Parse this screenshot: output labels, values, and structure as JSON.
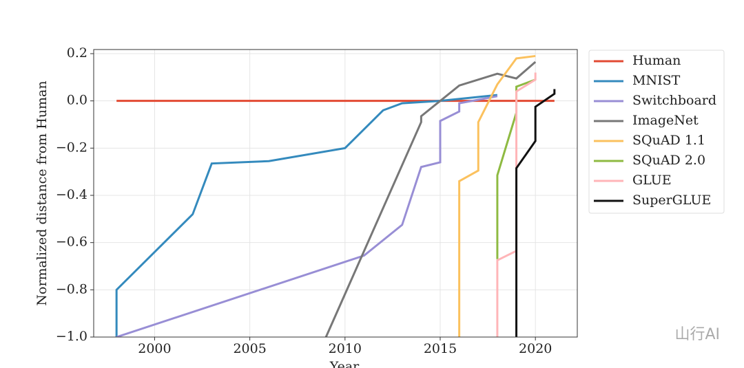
{
  "chart_data": {
    "type": "line",
    "xlabel": "Year",
    "ylabel": "Normalized distance from Human",
    "xlim": [
      1996.8,
      2022.2
    ],
    "ylim": [
      -1.0,
      0.2175
    ],
    "xticks": [
      2000,
      2005,
      2010,
      2015,
      2020
    ],
    "yticks": [
      {
        "value": -1.0,
        "label": "−1.0"
      },
      {
        "value": -0.8,
        "label": "−0.8"
      },
      {
        "value": -0.6,
        "label": "−0.6"
      },
      {
        "value": -0.4,
        "label": "−0.4"
      },
      {
        "value": -0.2,
        "label": "−0.2"
      },
      {
        "value": 0.0,
        "label": "0.0"
      },
      {
        "value": 0.2,
        "label": "0.2"
      }
    ],
    "grid": true,
    "legend": "outside right",
    "watermark": "山行AI",
    "series": [
      {
        "name": "Human",
        "color": "#E24A33",
        "x": [
          1998,
          2021
        ],
        "values": [
          0,
          0
        ]
      },
      {
        "name": "MNIST",
        "color": "#348ABD",
        "x": [
          1998,
          1998,
          2002,
          2003,
          2006,
          2010,
          2012,
          2013,
          2015,
          2018
        ],
        "values": [
          -1.0,
          -0.8,
          -0.48,
          -0.265,
          -0.255,
          -0.2,
          -0.04,
          -0.01,
          0.0,
          0.025
        ]
      },
      {
        "name": "Switchboard",
        "color": "#988ED5",
        "x": [
          1998,
          2011,
          2013,
          2014,
          2015,
          2015,
          2016,
          2016,
          2018
        ],
        "values": [
          -1.0,
          -0.655,
          -0.525,
          -0.28,
          -0.26,
          -0.085,
          -0.045,
          -0.01,
          0.02
        ]
      },
      {
        "name": "ImageNet",
        "color": "#777777",
        "x": [
          2009,
          2014,
          2014,
          2016,
          2018,
          2019,
          2020
        ],
        "values": [
          -1.0,
          -0.09,
          -0.065,
          0.065,
          0.115,
          0.095,
          0.165
        ]
      },
      {
        "name": "SQuAD 1.1",
        "color": "#FBC15E",
        "x": [
          2016,
          2016,
          2017,
          2017,
          2018,
          2019,
          2020
        ],
        "values": [
          -1.0,
          -0.34,
          -0.295,
          -0.09,
          0.07,
          0.18,
          0.19
        ]
      },
      {
        "name": "SQuAD 2.0",
        "color": "#8EBA42",
        "x": [
          2018,
          2018,
          2019,
          2019,
          2020
        ],
        "values": [
          -0.67,
          -0.315,
          -0.05,
          0.06,
          0.09
        ]
      },
      {
        "name": "GLUE",
        "color": "#FFB5B8",
        "x": [
          2018,
          2018,
          2019,
          2019,
          2020,
          2020
        ],
        "values": [
          -1.0,
          -0.675,
          -0.635,
          0.04,
          0.09,
          0.12
        ]
      },
      {
        "name": "SuperGLUE",
        "color": "#111111",
        "x": [
          2019,
          2019,
          2020,
          2020,
          2021,
          2021
        ],
        "values": [
          -1.0,
          -0.285,
          -0.17,
          -0.025,
          0.03,
          0.05
        ]
      }
    ]
  }
}
